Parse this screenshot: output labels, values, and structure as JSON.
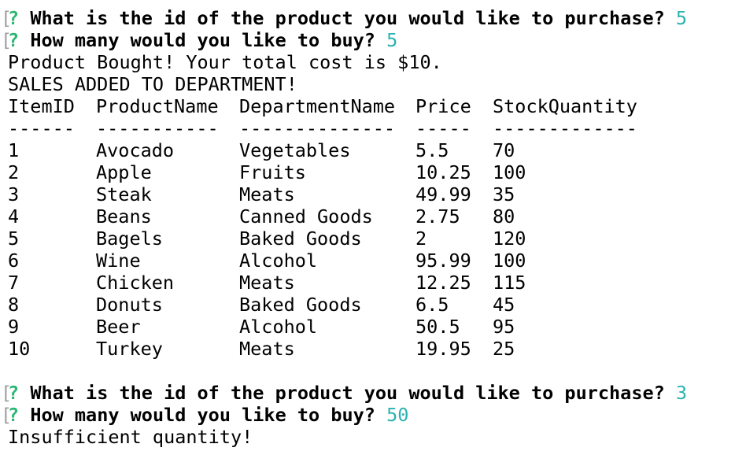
{
  "session1": {
    "prompt1": {
      "bracket": "[",
      "marker": "?",
      "question": "What is the id of the product you would like to purchase?",
      "answer": "5"
    },
    "prompt2": {
      "bracket": "[",
      "marker": "?",
      "question": "How many would you like to buy?",
      "answer": "5"
    },
    "result_line1": "Product Bought! Your total cost is $10.",
    "result_line2": "SALES ADDED TO DEPARTMENT!"
  },
  "table": {
    "headers": [
      "ItemID",
      "ProductName",
      "DepartmentName",
      "Price",
      "StockQuantity"
    ],
    "separators": [
      "------",
      "-----------",
      "--------------",
      "-----",
      "-------------"
    ],
    "rows": [
      [
        "1",
        "Avocado",
        "Vegetables",
        "5.5",
        "70"
      ],
      [
        "2",
        "Apple",
        "Fruits",
        "10.25",
        "100"
      ],
      [
        "3",
        "Steak",
        "Meats",
        "49.99",
        "35"
      ],
      [
        "4",
        "Beans",
        "Canned Goods",
        "2.75",
        "80"
      ],
      [
        "5",
        "Bagels",
        "Baked Goods",
        "2",
        "120"
      ],
      [
        "6",
        "Wine",
        "Alcohol",
        "95.99",
        "100"
      ],
      [
        "7",
        "Chicken",
        "Meats",
        "12.25",
        "115"
      ],
      [
        "8",
        "Donuts",
        "Baked Goods",
        "6.5",
        "45"
      ],
      [
        "9",
        "Beer",
        "Alcohol",
        "50.5",
        "95"
      ],
      [
        "10",
        "Turkey",
        "Meats",
        "19.95",
        "25"
      ]
    ]
  },
  "session2": {
    "prompt1": {
      "bracket": "[",
      "marker": "?",
      "question": "What is the id of the product you would like to purchase?",
      "answer": "3"
    },
    "prompt2": {
      "bracket": "[",
      "marker": "?",
      "question": "How many would you like to buy?",
      "answer": "50"
    },
    "result_line1": "Insufficient quantity!"
  },
  "colors": {
    "background": "#ffffff",
    "text": "#000000",
    "prompt_marker": "#2bb673",
    "answer": "#2bb3b0",
    "bracket": "#9e9e9e"
  }
}
